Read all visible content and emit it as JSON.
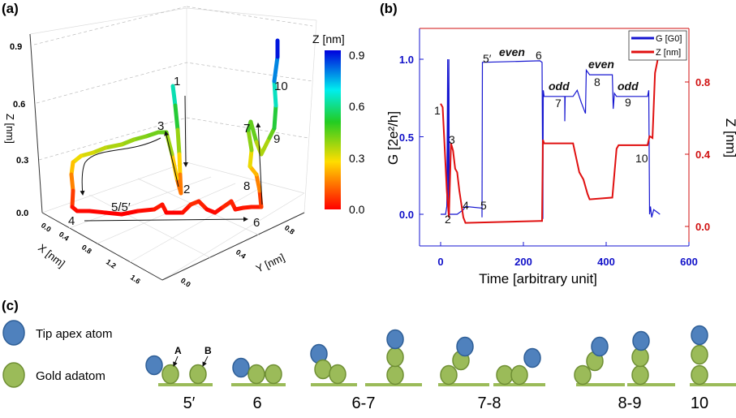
{
  "panels": {
    "a": "(a)",
    "b": "(b)",
    "c": "(c)"
  },
  "chart_data": [
    {
      "id": "a",
      "type": "line3d",
      "xlabel": "X [nm]",
      "ylabel": "Y [nm]",
      "zlabel": "Z [nm]",
      "x_ticks": [
        "0.0",
        "0.4",
        "0.8",
        "1.2",
        "1.6"
      ],
      "y_ticks": [
        "0.0",
        "0.4",
        "0.8"
      ],
      "z_ticks": [
        "0.0",
        "0.3",
        "0.6",
        "0.9"
      ],
      "zlim": [
        0,
        0.9
      ],
      "colorbar": {
        "title": "Z [nm]",
        "ticks": [
          "0.0",
          "0.3",
          "0.6",
          "0.9"
        ],
        "range": [
          0,
          0.9
        ],
        "colors": [
          "#ff0000",
          "#ffff00",
          "#00cc00",
          "#00ffff",
          "#0000ff"
        ]
      },
      "annotations": [
        "1",
        "2",
        "3",
        "4",
        "5/5′",
        "6",
        "7",
        "8",
        "9",
        "10"
      ]
    },
    {
      "id": "b",
      "type": "line",
      "xlabel": "Time [arbitrary unit]",
      "ylabel_left": "G [2e²/h]",
      "ylabel_right": "Z [nm]",
      "xlim": [
        -50,
        600
      ],
      "ylim_left": [
        -0.2,
        1.2
      ],
      "ylim_right": [
        -0.1,
        1.0
      ],
      "x_ticks": [
        "0",
        "200",
        "400",
        "600"
      ],
      "y_ticks_left": [
        "0.0",
        "0.5",
        "1.0"
      ],
      "y_ticks_right": [
        "0.0",
        "0.4",
        "0.8"
      ],
      "legend": {
        "position": "top-right",
        "entries": [
          "G [G0]",
          "Z [nm]"
        ]
      },
      "series": [
        {
          "name": "G [G0]",
          "axis": "left",
          "color": "#1515d0",
          "x": [
            0,
            12,
            15,
            17,
            18,
            20,
            21,
            40,
            55,
            60,
            100,
            100,
            101,
            240,
            245,
            247,
            248,
            250,
            300,
            300,
            301,
            320,
            330,
            340,
            350,
            352,
            360,
            415,
            417,
            420,
            425,
            500,
            503,
            505,
            507,
            510,
            515,
            530
          ],
          "y": [
            0,
            0,
            0.05,
            1.0,
            0.02,
            1.0,
            0,
            0,
            0.03,
            0.05,
            0.04,
            -0.02,
            0.98,
            0.99,
            0.98,
            -0.03,
            0.8,
            0.76,
            0.76,
            0.6,
            0.76,
            0.76,
            0.8,
            0.72,
            0.65,
            0.93,
            0.9,
            0.9,
            0.68,
            0.78,
            0.76,
            0.76,
            0.8,
            0,
            0.05,
            -0.02,
            0.03,
            0
          ]
        },
        {
          "name": "Z [nm]",
          "axis": "right",
          "color": "#e01010",
          "x": [
            0,
            5,
            15,
            20,
            25,
            30,
            35,
            40,
            45,
            55,
            60,
            240,
            245,
            247,
            250,
            320,
            335,
            345,
            355,
            360,
            415,
            425,
            430,
            500,
            505,
            512,
            518,
            525
          ],
          "y": [
            0.68,
            0.66,
            0.2,
            0.05,
            0.46,
            0.42,
            0.32,
            0.3,
            0.2,
            0.05,
            0.02,
            0.03,
            0.03,
            0.48,
            0.46,
            0.46,
            0.3,
            0.26,
            0.18,
            0.15,
            0.16,
            0.43,
            0.45,
            0.45,
            0.5,
            0.49,
            0.85,
            0.93
          ]
        }
      ],
      "annotations": {
        "n1": "1",
        "n2": "2",
        "n3": "3",
        "n4": "4",
        "n5": "5",
        "n5p": "5′",
        "n6": "6",
        "n7": "7",
        "n8": "8",
        "n9": "9",
        "n10": "10",
        "even1": "even",
        "even2": "even",
        "odd1": "odd",
        "odd2": "odd"
      }
    }
  ],
  "legend_c": {
    "tip": "Tip apex atom",
    "gold": "Gold adatom",
    "A": "A",
    "B": "B"
  },
  "stages_c": [
    "5′",
    "6",
    "6-7",
    "7-8",
    "8-9",
    "10"
  ]
}
